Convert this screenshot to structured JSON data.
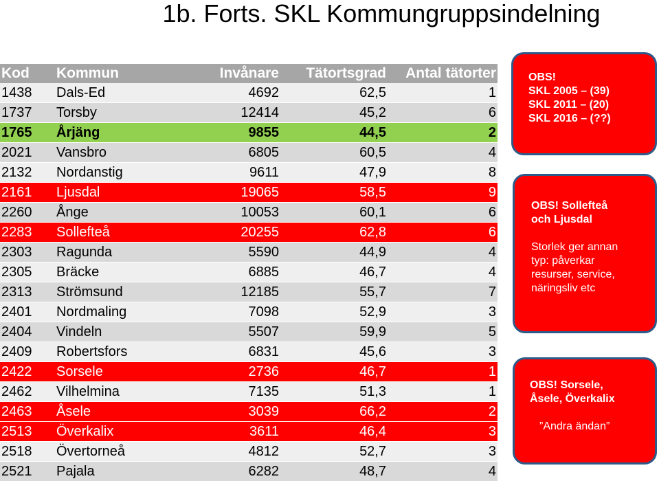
{
  "title": "1b. Forts. SKL Kommungruppsindelning",
  "table": {
    "headers": [
      "Kod",
      "Kommun",
      "Invånare",
      "Tätortsgrad",
      "Antal tätorter"
    ],
    "rows": [
      {
        "kod": "1438",
        "kommun": "Dals-Ed",
        "invanare": "4692",
        "tatortsgrad": "62,5",
        "antal": "1",
        "style": "light"
      },
      {
        "kod": "1737",
        "kommun": "Torsby",
        "invanare": "12414",
        "tatortsgrad": "45,2",
        "antal": "6",
        "style": "grey"
      },
      {
        "kod": "1765",
        "kommun": "Årjäng",
        "invanare": "9855",
        "tatortsgrad": "44,5",
        "antal": "2",
        "style": "green"
      },
      {
        "kod": "2021",
        "kommun": "Vansbro",
        "invanare": "6805",
        "tatortsgrad": "60,5",
        "antal": "4",
        "style": "grey"
      },
      {
        "kod": "2132",
        "kommun": "Nordanstig",
        "invanare": "9611",
        "tatortsgrad": "47,9",
        "antal": "8",
        "style": "light"
      },
      {
        "kod": "2161",
        "kommun": "Ljusdal",
        "invanare": "19065",
        "tatortsgrad": "58,5",
        "antal": "9",
        "style": "red"
      },
      {
        "kod": "2260",
        "kommun": "Ånge",
        "invanare": "10053",
        "tatortsgrad": "60,1",
        "antal": "6",
        "style": "grey"
      },
      {
        "kod": "2283",
        "kommun": "Sollefteå",
        "invanare": "20255",
        "tatortsgrad": "62,8",
        "antal": "6",
        "style": "red"
      },
      {
        "kod": "2303",
        "kommun": "Ragunda",
        "invanare": "5590",
        "tatortsgrad": "44,9",
        "antal": "4",
        "style": "grey"
      },
      {
        "kod": "2305",
        "kommun": "Bräcke",
        "invanare": "6885",
        "tatortsgrad": "46,7",
        "antal": "4",
        "style": "light"
      },
      {
        "kod": "2313",
        "kommun": "Strömsund",
        "invanare": "12185",
        "tatortsgrad": "55,7",
        "antal": "7",
        "style": "grey"
      },
      {
        "kod": "2401",
        "kommun": "Nordmaling",
        "invanare": "7098",
        "tatortsgrad": "52,9",
        "antal": "3",
        "style": "light"
      },
      {
        "kod": "2404",
        "kommun": "Vindeln",
        "invanare": "5507",
        "tatortsgrad": "59,9",
        "antal": "5",
        "style": "grey"
      },
      {
        "kod": "2409",
        "kommun": "Robertsfors",
        "invanare": "6831",
        "tatortsgrad": "45,6",
        "antal": "3",
        "style": "light"
      },
      {
        "kod": "2422",
        "kommun": "Sorsele",
        "invanare": "2736",
        "tatortsgrad": "46,7",
        "antal": "1",
        "style": "red"
      },
      {
        "kod": "2462",
        "kommun": "Vilhelmina",
        "invanare": "7135",
        "tatortsgrad": "51,3",
        "antal": "1",
        "style": "light"
      },
      {
        "kod": "2463",
        "kommun": "Åsele",
        "invanare": "3039",
        "tatortsgrad": "66,2",
        "antal": "2",
        "style": "red"
      },
      {
        "kod": "2513",
        "kommun": "Överkalix",
        "invanare": "3611",
        "tatortsgrad": "46,4",
        "antal": "3",
        "style": "red"
      },
      {
        "kod": "2518",
        "kommun": "Övertorneå",
        "invanare": "4812",
        "tatortsgrad": "52,7",
        "antal": "3",
        "style": "light"
      },
      {
        "kod": "2521",
        "kommun": "Pajala",
        "invanare": "6282",
        "tatortsgrad": "48,7",
        "antal": "4",
        "style": "grey"
      }
    ]
  },
  "callouts": {
    "first": {
      "line1": "OBS!",
      "line2": "SKL 2005 – (39)",
      "line3": "SKL 2011 – (20)",
      "line4": "SKL 2016 – (??)"
    },
    "second": {
      "line1": "OBS! Sollefteå",
      "line2": "och Ljusdal",
      "line3": "Storlek ger annan",
      "line4": "typ: påverkar",
      "line5": "resurser, service,",
      "line6": "näringsliv etc"
    },
    "third": {
      "line1": "OBS! Sorsele,",
      "line2": "Åsele, Överkalix",
      "line3": "”Andra ändan”"
    }
  },
  "colors": {
    "header": "#a6a6a6",
    "row_grey": "#d9d9d9",
    "row_light": "#efefef",
    "highlight_green": "#92d050",
    "highlight_red": "#ff0000",
    "callout_border": "#2e5a8a"
  }
}
